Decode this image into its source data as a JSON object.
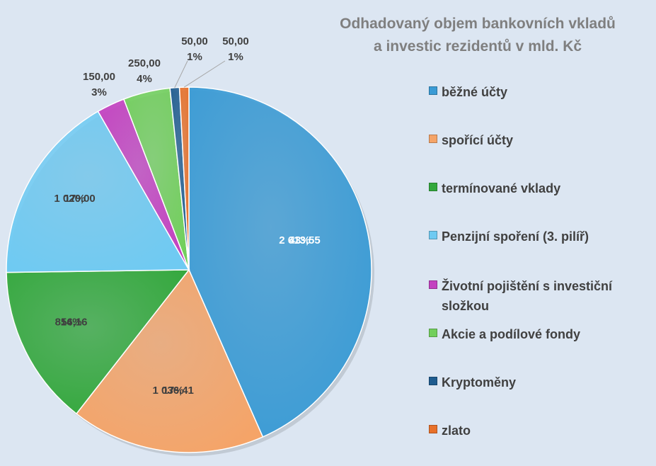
{
  "chart_data": {
    "type": "pie",
    "title": [
      "Odhadovaný objem bankovních vkladů",
      "a investic rezidentů v mld. Kč"
    ],
    "legend_position": "right",
    "slices": [
      {
        "label": "běžné účty",
        "value": 2613.55,
        "value_text": "2 613,55",
        "percent_text": "43%",
        "color": "#3a9bd5"
      },
      {
        "label": "spořící účty",
        "value": 1036.41,
        "value_text": "1 036,41",
        "percent_text": "17%",
        "color": "#f5a468"
      },
      {
        "label": "termínované vklady",
        "value": 856.16,
        "value_text": "856,16",
        "percent_text": "14%",
        "color": "#33a83c"
      },
      {
        "label": "Penzijní spoření (3. pilíř)",
        "value": 1020.0,
        "value_text": "1 020,00",
        "percent_text": "17%",
        "color": "#6fcaf2"
      },
      {
        "label": "Životní pojištění s investiční složkou",
        "value": 150.0,
        "value_text": "150,00",
        "percent_text": "3%",
        "color": "#c341c0"
      },
      {
        "label": "Akcie a podílové fondy",
        "value": 250.0,
        "value_text": "250,00",
        "percent_text": "4%",
        "color": "#72cf5c"
      },
      {
        "label": "Kryptoměny",
        "value": 50.0,
        "value_text": "50,00",
        "percent_text": "1%",
        "color": "#1f5c8f"
      },
      {
        "label": "zlato",
        "value": 50.0,
        "value_text": "50,00",
        "percent_text": "1%",
        "color": "#e8712a"
      }
    ]
  }
}
